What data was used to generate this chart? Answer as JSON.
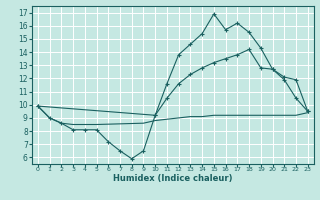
{
  "title": "",
  "xlabel": "Humidex (Indice chaleur)",
  "ylabel": "",
  "xlim": [
    -0.5,
    23.5
  ],
  "ylim": [
    5.5,
    17.5
  ],
  "yticks": [
    6,
    7,
    8,
    9,
    10,
    11,
    12,
    13,
    14,
    15,
    16,
    17
  ],
  "xticks": [
    0,
    1,
    2,
    3,
    4,
    5,
    6,
    7,
    8,
    9,
    10,
    11,
    12,
    13,
    14,
    15,
    16,
    17,
    18,
    19,
    20,
    21,
    22,
    23
  ],
  "bg_color": "#c5e8e2",
  "line_color": "#1a6060",
  "grid_color": "#ffffff",
  "line1_x": [
    0,
    1,
    2,
    3,
    4,
    5,
    6,
    7,
    8,
    9,
    10,
    11,
    12,
    13,
    14,
    15,
    16,
    17,
    18,
    19,
    20,
    21,
    22,
    23
  ],
  "line1_y": [
    9.9,
    9.0,
    8.6,
    8.1,
    8.1,
    8.1,
    7.2,
    6.5,
    5.9,
    6.5,
    9.2,
    11.6,
    13.8,
    14.6,
    15.4,
    16.9,
    15.7,
    16.2,
    15.5,
    14.3,
    12.7,
    11.9,
    10.5,
    9.5
  ],
  "line2_x": [
    0,
    10,
    11,
    12,
    13,
    14,
    15,
    16,
    17,
    18,
    19,
    20,
    21,
    22,
    23
  ],
  "line2_y": [
    9.9,
    9.2,
    10.5,
    11.6,
    12.3,
    12.8,
    13.2,
    13.5,
    13.8,
    14.2,
    12.8,
    12.7,
    12.1,
    11.9,
    9.5
  ],
  "line3_x": [
    0,
    1,
    2,
    3,
    4,
    5,
    9,
    10,
    11,
    12,
    13,
    14,
    15,
    16,
    17,
    18,
    19,
    20,
    21,
    22,
    23
  ],
  "line3_y": [
    9.9,
    9.0,
    8.6,
    8.5,
    8.5,
    8.5,
    8.6,
    8.8,
    8.9,
    9.0,
    9.1,
    9.1,
    9.2,
    9.2,
    9.2,
    9.2,
    9.2,
    9.2,
    9.2,
    9.2,
    9.4
  ]
}
